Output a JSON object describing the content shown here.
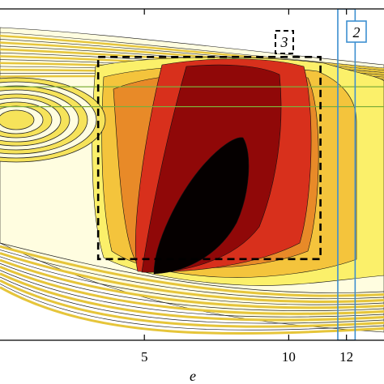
{
  "chart_data": {
    "type": "heatmap",
    "title": "",
    "xlabel": "e",
    "ylabel": "",
    "xlim": [
      0,
      13.3
    ],
    "ylim": [
      0,
      1
    ],
    "xticks": [
      {
        "value": 5,
        "label": "5"
      },
      {
        "value": 10,
        "label": "10"
      },
      {
        "value": 12,
        "label": "12"
      }
    ],
    "grid": false,
    "colors": {
      "level_1": "#fffde0",
      "level_2": "#fbf06a",
      "level_3": "#f4c43c",
      "level_4": "#e88a28",
      "level_5": "#d8301c",
      "level_6": "#900808",
      "level_7": "#050000",
      "contour_line": "#111111",
      "green_line": "#7fae3a",
      "blue_box": "#3d8fd0",
      "dashed_box": "#000000"
    },
    "annotations": [
      {
        "label": "3",
        "type": "dashed-box",
        "x_range": [
          3.4,
          11.1
        ],
        "y_range": [
          0.245,
          0.855
        ]
      },
      {
        "label": "2",
        "type": "solid-box",
        "x_range": [
          11.7,
          12.3
        ],
        "y_range": [
          0.0,
          1.0
        ]
      }
    ],
    "reference_lines": [
      {
        "orientation": "horizontal",
        "y": 0.765,
        "color": "#7fae3a"
      },
      {
        "orientation": "horizontal",
        "y": 0.705,
        "color": "#7fae3a"
      }
    ]
  }
}
